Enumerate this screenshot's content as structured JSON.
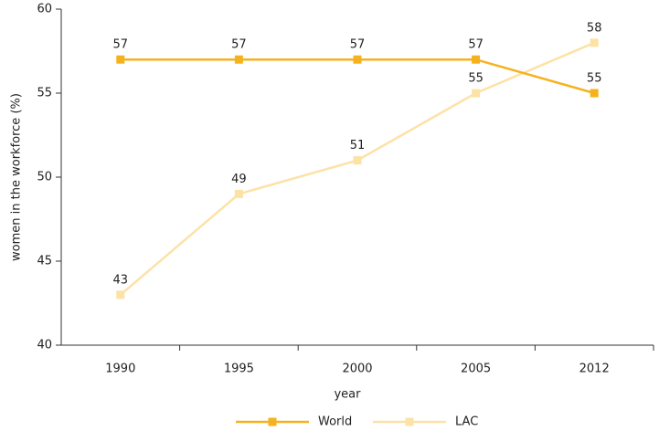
{
  "chart_data": {
    "type": "line",
    "categories": [
      "1990",
      "1995",
      "2000",
      "2005",
      "2012"
    ],
    "series": [
      {
        "name": "World",
        "color": "#f5b21e",
        "values": [
          57,
          57,
          57,
          57,
          55
        ]
      },
      {
        "name": "LAC",
        "color": "#fde2a6",
        "values": [
          43,
          49,
          51,
          55,
          58
        ]
      }
    ],
    "ylim": [
      40,
      60
    ],
    "yticks": [
      40,
      45,
      50,
      55,
      60
    ],
    "xlabel": "year",
    "ylabel": "women in the workforce (%)",
    "legend": "bottom"
  }
}
